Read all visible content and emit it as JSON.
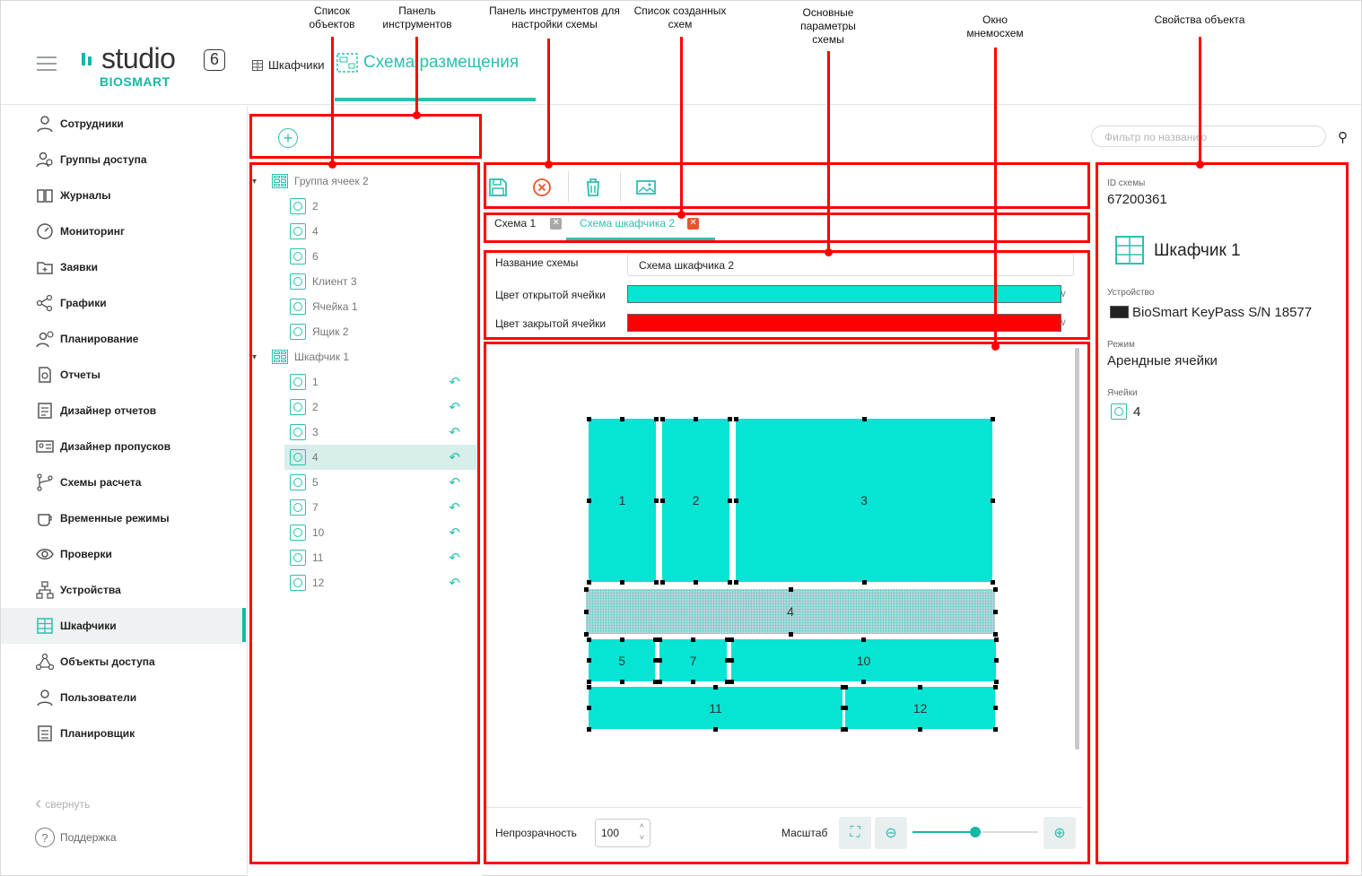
{
  "header": {
    "logo_word": "studio",
    "logo_version": "6",
    "logo_brand": "BIOSMART",
    "breadcrumb": "Шкафчики",
    "active_tab": "Схема размещения"
  },
  "sidebar": {
    "items": [
      {
        "label": "Сотрудники",
        "icon": "person-icon"
      },
      {
        "label": "Группы доступа",
        "icon": "group-icon"
      },
      {
        "label": "Журналы",
        "icon": "book-icon"
      },
      {
        "label": "Мониторинг",
        "icon": "gauge-icon"
      },
      {
        "label": "Заявки",
        "icon": "folder-icon"
      },
      {
        "label": "Графики",
        "icon": "share-icon"
      },
      {
        "label": "Планирование",
        "icon": "person-clock-icon"
      },
      {
        "label": "Отчеты",
        "icon": "report-icon"
      },
      {
        "label": "Дизайнер отчетов",
        "icon": "report-designer-icon"
      },
      {
        "label": "Дизайнер пропусков",
        "icon": "id-card-icon"
      },
      {
        "label": "Схемы расчета",
        "icon": "branch-icon"
      },
      {
        "label": "Временные режимы",
        "icon": "cup-icon"
      },
      {
        "label": "Проверки",
        "icon": "eye-icon"
      },
      {
        "label": "Устройства",
        "icon": "network-icon"
      },
      {
        "label": "Шкафчики",
        "icon": "lockers-icon"
      },
      {
        "label": "Объекты доступа",
        "icon": "nodes-icon"
      },
      {
        "label": "Пользователи",
        "icon": "user-icon"
      },
      {
        "label": "Планировщик",
        "icon": "list-icon"
      }
    ],
    "active_index": 14,
    "collapse_label": "свернуть",
    "support_label": "Поддержка"
  },
  "tree": {
    "groups": [
      {
        "label": "Группа ячеек 2",
        "children": [
          "2",
          "4",
          "6",
          "Клиент 3",
          "Ячейка 1",
          "Ящик 2"
        ]
      },
      {
        "label": "Шкафчик 1",
        "children": [
          "1",
          "2",
          "3",
          "4",
          "5",
          "7",
          "10",
          "11",
          "12"
        ]
      }
    ],
    "selected": "4"
  },
  "schema_tabs": [
    {
      "label": "Схема 1",
      "active": false
    },
    {
      "label": "Схема шкафчика 2",
      "active": true
    }
  ],
  "params": {
    "name_label": "Название схемы",
    "name_value": "Схема шкафчика 2",
    "open_color_label": "Цвет открытой ячейки",
    "open_color": "#06e4d3",
    "closed_color_label": "Цвет закрытой ячейки",
    "closed_color": "#ff0000"
  },
  "cells": [
    "1",
    "2",
    "3",
    "4",
    "5",
    "7",
    "10",
    "11",
    "12"
  ],
  "bottom": {
    "opacity_label": "Непрозрачность",
    "opacity_value": "100",
    "scale_label": "Масштаб",
    "zoom_value": 0.5
  },
  "filter": {
    "placeholder": "Фильтр по названию"
  },
  "properties": {
    "id_label": "ID схемы",
    "id_value": "67200361",
    "object_name": "Шкафчик 1",
    "device_label": "Устройство",
    "device_value": "BioSmart KeyPass S/N 18577",
    "mode_label": "Режим",
    "mode_value": "Арендные ячейки",
    "cells_label": "Ячейки",
    "cells_value": "4"
  },
  "annotations": {
    "objects_list": "Список объектов",
    "toolbar": "Панель инструментов",
    "schema_toolbar": "Панель инструментов для настройки схемы",
    "schemas_list": "Список созданных схем",
    "main_params": "Основные параметры схемы",
    "mnemo_window": "Окно мнемосхем",
    "object_props": "Свойства объекта"
  },
  "colors": {
    "accent": "#14b8a6",
    "annotation": "#ff0000"
  }
}
